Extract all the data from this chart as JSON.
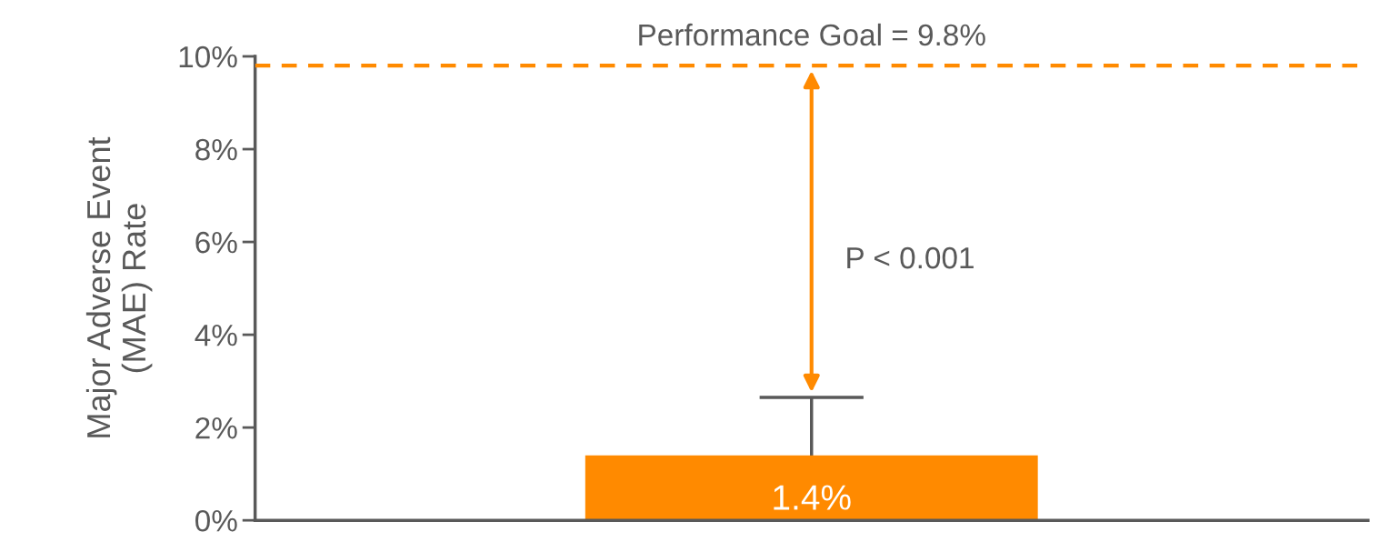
{
  "chart_data": {
    "type": "bar",
    "ylabel": "Major Adverse Event\n(MAE) Rate",
    "categories": [
      null
    ],
    "values": [
      1.4
    ],
    "color": "#ff8a00",
    "errors": [
      1.25
    ],
    "value_labels": [
      "1.4%"
    ],
    "ylim": [
      0,
      10
    ],
    "yticks": [
      {
        "value": 0,
        "label": "0%"
      },
      {
        "value": 2,
        "label": "2%"
      },
      {
        "value": 4,
        "label": "4%"
      },
      {
        "value": 6,
        "label": "6%"
      },
      {
        "value": 8,
        "label": "8%"
      },
      {
        "value": 10,
        "label": "10%"
      }
    ],
    "ref_lines": [
      {
        "axis": "y",
        "value": 9.8,
        "label": "Performance Goal = 9.8%",
        "color": "#ff8a00",
        "line_style": "dashed"
      }
    ],
    "annotations": [
      "P < 0.001"
    ],
    "grid": false,
    "legend": false
  }
}
